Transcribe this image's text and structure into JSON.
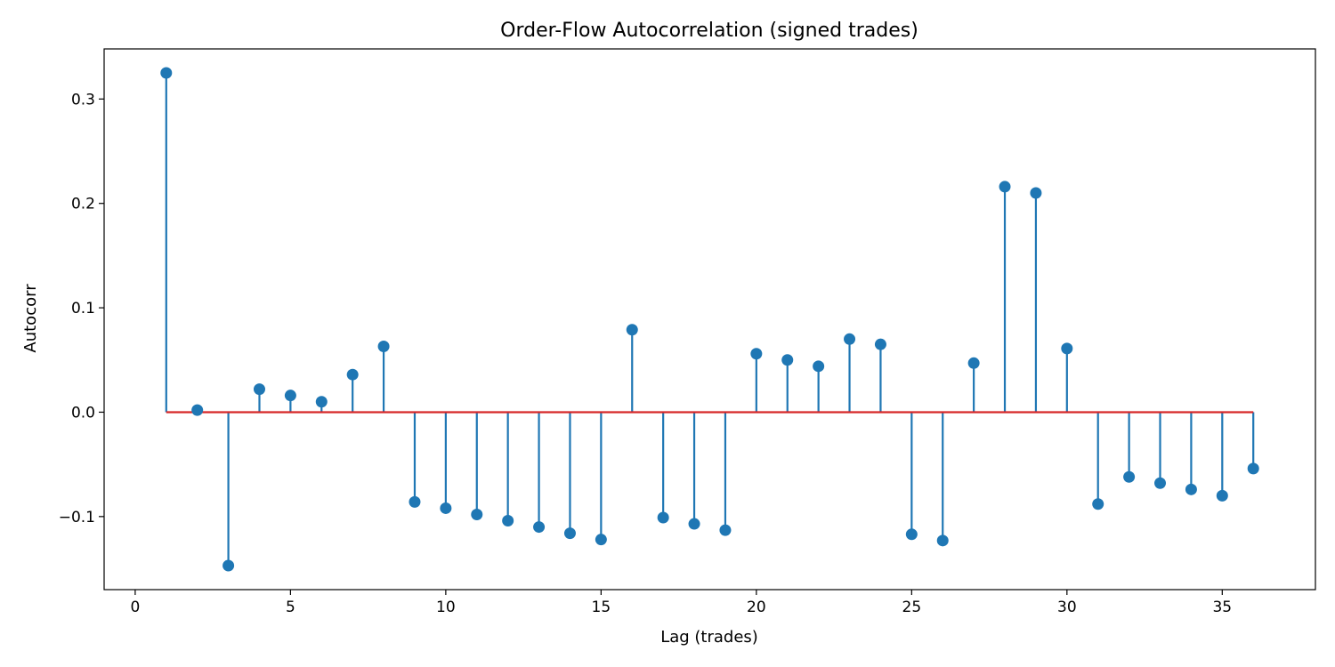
{
  "chart_data": {
    "type": "stem",
    "title": "Order-Flow Autocorrelation (signed trades)",
    "xlabel": "Lag (trades)",
    "ylabel": "Autocorr",
    "xlim": [
      -1,
      38
    ],
    "ylim": [
      -0.17,
      0.348
    ],
    "xticks": [
      0,
      5,
      10,
      15,
      20,
      25,
      30,
      35
    ],
    "xtick_labels": [
      "0",
      "5",
      "10",
      "15",
      "20",
      "25",
      "30",
      "35"
    ],
    "yticks": [
      -0.1,
      0.0,
      0.1,
      0.2,
      0.3
    ],
    "ytick_labels": [
      "−0.1",
      "0.0",
      "0.1",
      "0.2",
      "0.3"
    ],
    "grid": false,
    "legend": "none",
    "x": [
      1,
      2,
      3,
      4,
      5,
      6,
      7,
      8,
      9,
      10,
      11,
      12,
      13,
      14,
      15,
      16,
      17,
      18,
      19,
      20,
      21,
      22,
      23,
      24,
      25,
      26,
      27,
      28,
      29,
      30,
      31,
      32,
      33,
      34,
      35,
      36
    ],
    "values": [
      0.325,
      0.002,
      -0.147,
      0.022,
      0.016,
      0.01,
      0.036,
      0.063,
      -0.086,
      -0.092,
      -0.098,
      -0.104,
      -0.11,
      -0.116,
      -0.122,
      0.079,
      -0.101,
      -0.107,
      -0.113,
      0.056,
      0.05,
      0.044,
      0.07,
      0.065,
      -0.117,
      -0.123,
      0.047,
      0.216,
      0.21,
      0.061,
      -0.088,
      -0.062,
      -0.068,
      -0.074,
      -0.08,
      -0.054
    ],
    "colors": {
      "stem": "#1f77b4",
      "marker": "#1f77b4",
      "baseline": "#d62728",
      "axes": "#000000"
    }
  }
}
